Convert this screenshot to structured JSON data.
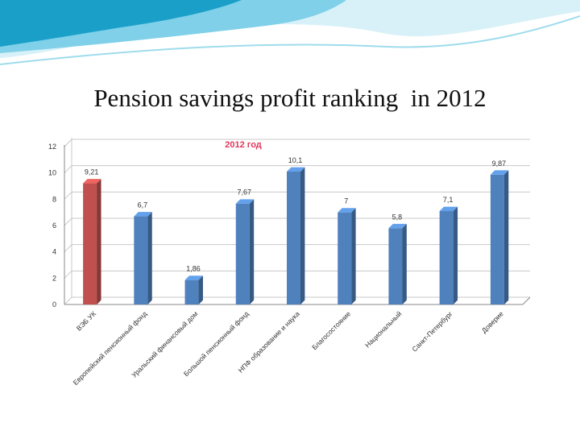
{
  "slide": {
    "title": "Pension savings profit ranking  in 2012",
    "header_colors": [
      "#1aa0c8",
      "#7fd0e8",
      "#d8f1f8"
    ]
  },
  "chart_data": {
    "type": "bar",
    "title": "2012 год",
    "categories": [
      "ВЭБ УК",
      "Европейский пенсионный фонд",
      "Уральский финансовый дом",
      "Большой пенсионный фонд",
      "НПФ образование и наука",
      "Благосостояние",
      "Национальный",
      "Санкт-Петербург",
      "Доверие"
    ],
    "values": [
      9.21,
      6.7,
      1.86,
      7.67,
      10.1,
      7,
      5.8,
      7.1,
      9.87
    ],
    "value_labels": [
      "9,21",
      "6,7",
      "1,86",
      "7,67",
      "10,1",
      "7",
      "5,8",
      "7,1",
      "9,87"
    ],
    "ylim": [
      0,
      12
    ],
    "yticks": [
      0,
      2,
      4,
      6,
      8,
      10,
      12
    ],
    "grid": true,
    "legend": "none",
    "bar_colors": {
      "highlight": "#c0504d",
      "default": "#4f81bd"
    },
    "highlight_index": 0
  }
}
